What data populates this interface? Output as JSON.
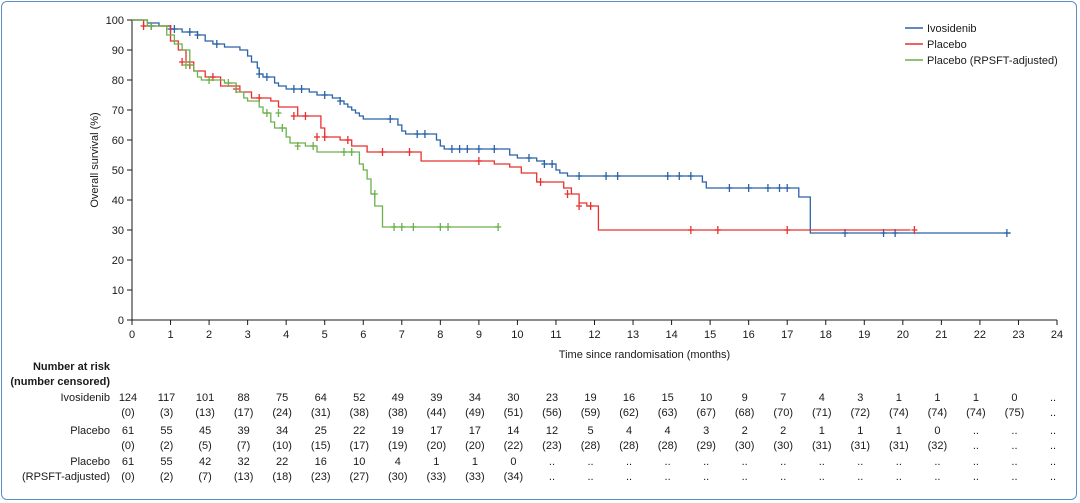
{
  "chart_data": {
    "type": "line",
    "subtype": "kaplan-meier",
    "xlabel": "Time since randomisation (months)",
    "ylabel": "Overall survival (%)",
    "xlim": [
      0,
      24
    ],
    "ylim": [
      0,
      100
    ],
    "xticks": [
      "0",
      "1",
      "2",
      "3",
      "4",
      "5",
      "6",
      "7",
      "8",
      "9",
      "10",
      "11",
      "12",
      "13",
      "14",
      "15",
      "16",
      "17",
      "18",
      "19",
      "20",
      "21",
      "22",
      "23",
      "24"
    ],
    "yticks": [
      "0",
      "10",
      "20",
      "30",
      "40",
      "50",
      "60",
      "70",
      "80",
      "90",
      "100"
    ],
    "legend_position": "top-right",
    "series": [
      {
        "name": "Ivosidenib",
        "color": "#2b62a8",
        "steps": [
          [
            0,
            100
          ],
          [
            0.4,
            99
          ],
          [
            0.7,
            98
          ],
          [
            1.0,
            97
          ],
          [
            1.3,
            96
          ],
          [
            1.7,
            95
          ],
          [
            1.9,
            93
          ],
          [
            2.1,
            92
          ],
          [
            2.4,
            91
          ],
          [
            2.8,
            90
          ],
          [
            3.0,
            88
          ],
          [
            3.1,
            86
          ],
          [
            3.25,
            84
          ],
          [
            3.3,
            82
          ],
          [
            3.4,
            81
          ],
          [
            3.7,
            79
          ],
          [
            3.8,
            78
          ],
          [
            4.0,
            77
          ],
          [
            4.6,
            76
          ],
          [
            4.8,
            75
          ],
          [
            5.2,
            74
          ],
          [
            5.4,
            73
          ],
          [
            5.5,
            72
          ],
          [
            5.6,
            71
          ],
          [
            5.7,
            70
          ],
          [
            5.8,
            69
          ],
          [
            5.9,
            68
          ],
          [
            6.0,
            67
          ],
          [
            6.9,
            65
          ],
          [
            7.0,
            63
          ],
          [
            7.1,
            62
          ],
          [
            7.9,
            60
          ],
          [
            8.0,
            58
          ],
          [
            8.1,
            57
          ],
          [
            9.8,
            55
          ],
          [
            10.0,
            54
          ],
          [
            10.5,
            53
          ],
          [
            10.7,
            52
          ],
          [
            11.0,
            50
          ],
          [
            11.1,
            49
          ],
          [
            11.3,
            48
          ],
          [
            14.8,
            46
          ],
          [
            14.9,
            44
          ],
          [
            17.3,
            41
          ],
          [
            17.6,
            29
          ],
          [
            22.8,
            29
          ]
        ],
        "censor": [
          [
            0.5,
            98
          ],
          [
            1.0,
            97
          ],
          [
            1.1,
            97
          ],
          [
            1.5,
            96
          ],
          [
            1.7,
            95
          ],
          [
            2.2,
            92
          ],
          [
            3.3,
            82
          ],
          [
            3.5,
            81
          ],
          [
            4.2,
            77
          ],
          [
            4.4,
            77
          ],
          [
            5.0,
            75
          ],
          [
            5.4,
            73
          ],
          [
            6.7,
            67
          ],
          [
            7.4,
            62
          ],
          [
            7.6,
            62
          ],
          [
            8.3,
            57
          ],
          [
            8.5,
            57
          ],
          [
            8.7,
            57
          ],
          [
            9.0,
            57
          ],
          [
            9.4,
            57
          ],
          [
            10.3,
            54
          ],
          [
            10.7,
            52
          ],
          [
            10.9,
            52
          ],
          [
            11.6,
            48
          ],
          [
            12.3,
            48
          ],
          [
            12.6,
            48
          ],
          [
            13.9,
            48
          ],
          [
            14.2,
            48
          ],
          [
            14.5,
            48
          ],
          [
            15.5,
            44
          ],
          [
            16.0,
            44
          ],
          [
            16.5,
            44
          ],
          [
            16.8,
            44
          ],
          [
            17.0,
            44
          ],
          [
            18.5,
            29
          ],
          [
            19.5,
            29
          ],
          [
            19.8,
            29
          ],
          [
            22.7,
            29
          ]
        ]
      },
      {
        "name": "Placebo",
        "color": "#e8302f",
        "steps": [
          [
            0,
            100
          ],
          [
            0.3,
            98
          ],
          [
            1.0,
            93
          ],
          [
            1.2,
            90
          ],
          [
            1.4,
            86
          ],
          [
            1.6,
            83
          ],
          [
            1.9,
            81
          ],
          [
            2.3,
            78
          ],
          [
            2.8,
            76
          ],
          [
            3.1,
            74
          ],
          [
            3.6,
            73
          ],
          [
            3.8,
            71
          ],
          [
            4.3,
            68
          ],
          [
            4.9,
            64
          ],
          [
            5.0,
            61
          ],
          [
            5.4,
            60
          ],
          [
            5.7,
            58
          ],
          [
            6.1,
            56
          ],
          [
            7.5,
            53
          ],
          [
            9.4,
            52
          ],
          [
            9.8,
            51
          ],
          [
            10.1,
            49
          ],
          [
            10.5,
            46
          ],
          [
            11.2,
            44
          ],
          [
            11.4,
            42
          ],
          [
            11.6,
            39
          ],
          [
            11.8,
            38
          ],
          [
            12.1,
            30
          ],
          [
            20.2,
            30
          ]
        ],
        "censor": [
          [
            0.3,
            98
          ],
          [
            1.3,
            86
          ],
          [
            1.5,
            85
          ],
          [
            2.1,
            81
          ],
          [
            2.7,
            77
          ],
          [
            3.3,
            74
          ],
          [
            4.2,
            68
          ],
          [
            4.5,
            68
          ],
          [
            4.8,
            61
          ],
          [
            5.0,
            61
          ],
          [
            5.6,
            60
          ],
          [
            6.5,
            56
          ],
          [
            7.2,
            56
          ],
          [
            9.0,
            53
          ],
          [
            10.6,
            46
          ],
          [
            11.3,
            42
          ],
          [
            11.6,
            38
          ],
          [
            11.9,
            38
          ],
          [
            14.5,
            30
          ],
          [
            15.2,
            30
          ],
          [
            17.0,
            30
          ],
          [
            20.3,
            30
          ]
        ]
      },
      {
        "name": "Placebo (RPSFT-adjusted)",
        "color": "#6ab04c",
        "steps": [
          [
            0,
            100
          ],
          [
            0.4,
            98
          ],
          [
            0.9,
            95
          ],
          [
            1.1,
            92
          ],
          [
            1.3,
            90
          ],
          [
            1.5,
            85
          ],
          [
            1.6,
            83
          ],
          [
            1.7,
            81
          ],
          [
            1.8,
            80
          ],
          [
            2.4,
            79
          ],
          [
            2.7,
            76
          ],
          [
            2.9,
            74
          ],
          [
            3.0,
            73
          ],
          [
            3.3,
            71
          ],
          [
            3.4,
            69
          ],
          [
            3.6,
            66
          ],
          [
            3.7,
            64
          ],
          [
            4.0,
            61
          ],
          [
            4.1,
            59
          ],
          [
            4.5,
            58
          ],
          [
            4.8,
            56
          ],
          [
            5.9,
            52
          ],
          [
            6.0,
            50
          ],
          [
            6.1,
            47
          ],
          [
            6.2,
            42
          ],
          [
            6.3,
            38
          ],
          [
            6.5,
            31
          ],
          [
            9.5,
            31
          ]
        ],
        "censor": [
          [
            0.5,
            98
          ],
          [
            1.4,
            85
          ],
          [
            2.0,
            80
          ],
          [
            2.5,
            79
          ],
          [
            3.5,
            69
          ],
          [
            3.8,
            69
          ],
          [
            3.9,
            64
          ],
          [
            4.3,
            58
          ],
          [
            4.7,
            58
          ],
          [
            5.5,
            56
          ],
          [
            5.7,
            56
          ],
          [
            6.3,
            42
          ],
          [
            6.8,
            31
          ],
          [
            7.0,
            31
          ],
          [
            7.3,
            31
          ],
          [
            8.0,
            31
          ],
          [
            8.2,
            31
          ],
          [
            9.5,
            31
          ]
        ]
      }
    ]
  },
  "risk_table": {
    "title_line1": "Number at risk",
    "title_line2": "(number censored)",
    "rows": [
      {
        "label_lines": [
          "Ivosidenib"
        ],
        "at_risk": [
          "124",
          "117",
          "101",
          "88",
          "75",
          "64",
          "52",
          "49",
          "39",
          "34",
          "30",
          "23",
          "19",
          "16",
          "15",
          "10",
          "9",
          "7",
          "4",
          "3",
          "1",
          "1",
          "1",
          "0",
          ".."
        ],
        "censored": [
          "(0)",
          "(3)",
          "(13)",
          "(17)",
          "(24)",
          "(31)",
          "(38)",
          "(38)",
          "(44)",
          "(49)",
          "(51)",
          "(56)",
          "(59)",
          "(62)",
          "(63)",
          "(67)",
          "(68)",
          "(70)",
          "(71)",
          "(72)",
          "(74)",
          "(74)",
          "(74)",
          "(75)",
          ".."
        ]
      },
      {
        "label_lines": [
          "Placebo"
        ],
        "at_risk": [
          "61",
          "55",
          "45",
          "39",
          "34",
          "25",
          "22",
          "19",
          "17",
          "17",
          "14",
          "12",
          "5",
          "4",
          "4",
          "3",
          "2",
          "2",
          "1",
          "1",
          "1",
          "0",
          "..",
          "..",
          ".."
        ],
        "censored": [
          "(0)",
          "(2)",
          "(5)",
          "(7)",
          "(10)",
          "(15)",
          "(17)",
          "(19)",
          "(20)",
          "(20)",
          "(22)",
          "(23)",
          "(28)",
          "(28)",
          "(28)",
          "(29)",
          "(30)",
          "(30)",
          "(31)",
          "(31)",
          "(31)",
          "(32)",
          "..",
          "..",
          ".."
        ]
      },
      {
        "label_lines": [
          "Placebo",
          "(RPSFT-adjusted)"
        ],
        "at_risk": [
          "61",
          "55",
          "42",
          "32",
          "22",
          "16",
          "10",
          "4",
          "1",
          "1",
          "0",
          "..",
          "..",
          "..",
          "..",
          "..",
          "..",
          "..",
          "..",
          "..",
          "..",
          "..",
          "..",
          "..",
          ".."
        ],
        "censored": [
          "(0)",
          "(2)",
          "(7)",
          "(13)",
          "(18)",
          "(23)",
          "(27)",
          "(30)",
          "(33)",
          "(33)",
          "(34)",
          "..",
          "..",
          "..",
          "..",
          "..",
          "..",
          "..",
          "..",
          "..",
          "..",
          "..",
          "..",
          "..",
          ".."
        ]
      }
    ]
  }
}
